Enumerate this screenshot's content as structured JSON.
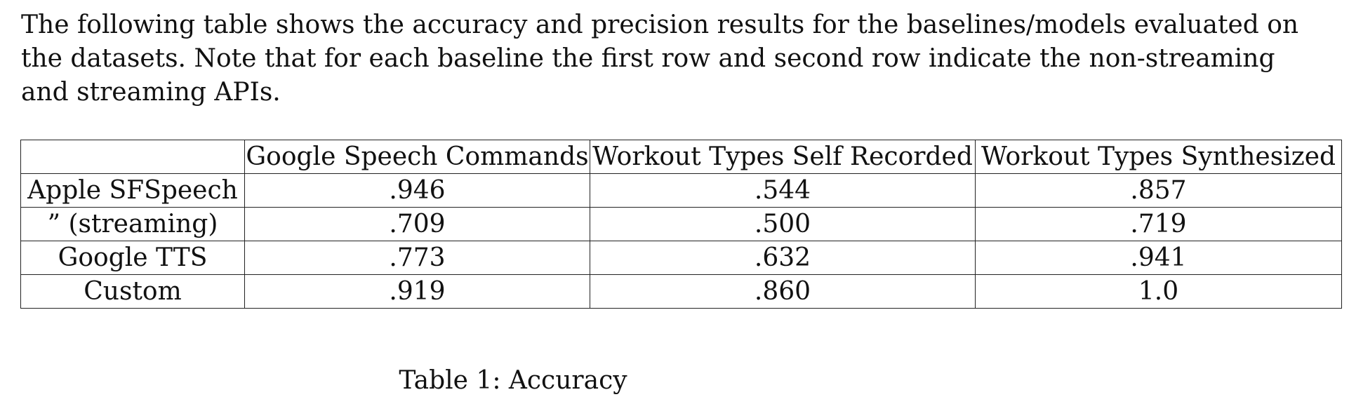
{
  "intro_lines": [
    "The following table shows the accuracy and precision results for the baselines/models evaluated on",
    "the datasets. Note that for each baseline the first row and second row indicate the non-streaming",
    "and streaming APIs."
  ],
  "table": {
    "headers": [
      "",
      "Google Speech Commands",
      "Workout Types Self Recorded",
      "Workout Types Synthesized"
    ],
    "rows": [
      [
        "Apple SFSpeech",
        ".946",
        ".544",
        ".857"
      ],
      [
        "” (streaming)",
        ".709",
        ".500",
        ".719"
      ],
      [
        "Google TTS",
        ".773",
        ".632",
        ".941"
      ],
      [
        "Custom",
        ".919",
        ".860",
        "1.0"
      ]
    ]
  },
  "caption": "Table 1: Accuracy"
}
